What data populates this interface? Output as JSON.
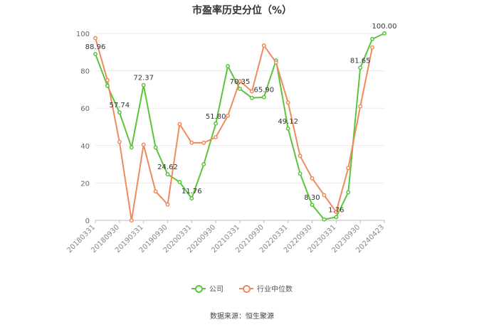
{
  "chart_data": {
    "type": "line",
    "title": "市盈率历史分位（%）",
    "xlabel": "",
    "ylabel": "",
    "ylim": [
      0,
      100
    ],
    "yticks": [
      0,
      20,
      40,
      60,
      80,
      100
    ],
    "grid": true,
    "legend_position": "bottom",
    "tick_labels": [
      "20180331",
      "20180930",
      "20190331",
      "20190930",
      "20200331",
      "20200930",
      "20210331",
      "20210930",
      "20220331",
      "20220930",
      "20230331",
      "20230930",
      "20240423"
    ],
    "x": [
      "20180331",
      "20180630",
      "20180930",
      "20181231",
      "20190331",
      "20190630",
      "20190930",
      "20191231",
      "20200331",
      "20200630",
      "20200930",
      "20201231",
      "20210331",
      "20210630",
      "20210930",
      "20211231",
      "20220331",
      "20220630",
      "20220930",
      "20221231",
      "20230331",
      "20230630",
      "20230930",
      "20231231",
      "20240423"
    ],
    "series": [
      {
        "name": "公司",
        "color": "#5ac43a",
        "values": [
          88.96,
          72.0,
          57.74,
          39.0,
          72.37,
          39.0,
          24.62,
          20.5,
          11.76,
          30.0,
          51.8,
          82.5,
          70.35,
          65.5,
          65.9,
          85.5,
          49.12,
          25.0,
          8.3,
          0.5,
          1.76,
          15.0,
          81.65,
          97.0,
          100.0
        ]
      },
      {
        "name": "行业中位数",
        "color": "#f08a5d",
        "values": [
          97.5,
          75.0,
          42.0,
          0.0,
          40.5,
          15.5,
          8.5,
          51.5,
          41.5,
          41.5,
          44.5,
          56.0,
          74.5,
          69.0,
          93.5,
          84.5,
          63.0,
          34.5,
          22.5,
          13.5,
          4.5,
          28.0,
          61.0,
          92.5,
          null
        ]
      }
    ],
    "data_labels": [
      {
        "series": 0,
        "index": 0,
        "text": "88.96"
      },
      {
        "series": 0,
        "index": 2,
        "text": "57.74"
      },
      {
        "series": 0,
        "index": 4,
        "text": "72.37"
      },
      {
        "series": 0,
        "index": 6,
        "text": "24.62"
      },
      {
        "series": 0,
        "index": 8,
        "text": "11.76"
      },
      {
        "series": 0,
        "index": 10,
        "text": "51.80"
      },
      {
        "series": 0,
        "index": 12,
        "text": "70.35"
      },
      {
        "series": 0,
        "index": 14,
        "text": "65.90"
      },
      {
        "series": 0,
        "index": 16,
        "text": "49.12"
      },
      {
        "series": 0,
        "index": 18,
        "text": "8.30"
      },
      {
        "series": 0,
        "index": 20,
        "text": "1.76"
      },
      {
        "series": 0,
        "index": 22,
        "text": "81.65"
      },
      {
        "series": 0,
        "index": 24,
        "text": "100.00"
      }
    ]
  },
  "source": "数据来源：恒生聚源"
}
